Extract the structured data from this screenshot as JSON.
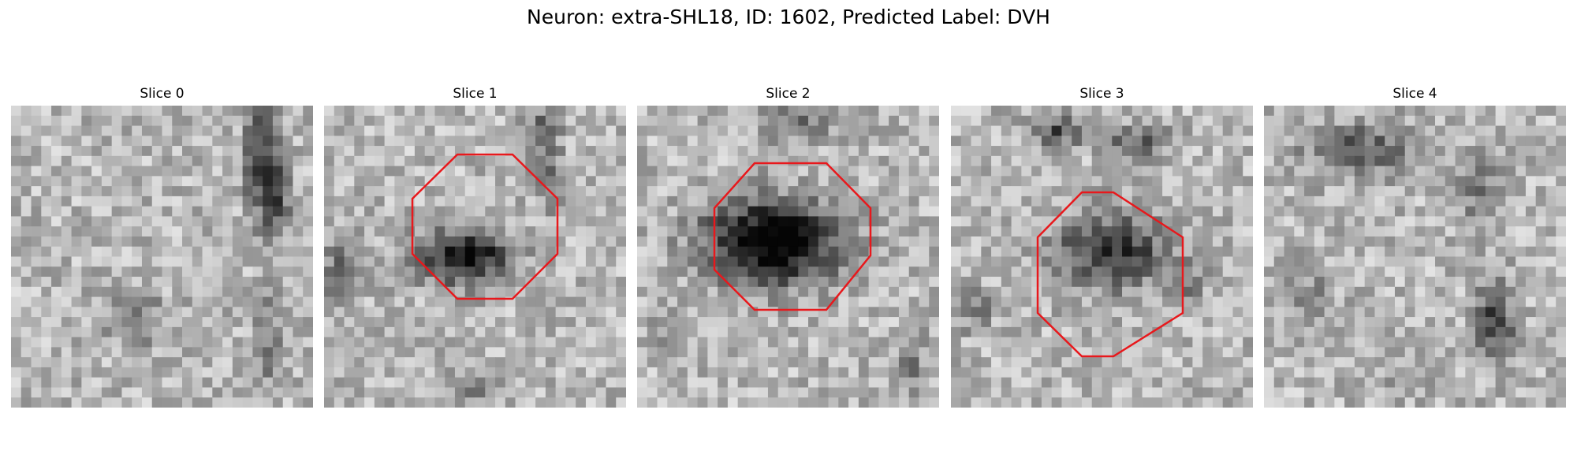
{
  "figure": {
    "title": "Neuron: extra-SHL18, ID: 1602, Predicted Label: DVH",
    "outline_color": "#e8181c"
  },
  "slices": [
    {
      "label": "Slice 0",
      "has_outline": false
    },
    {
      "label": "Slice 1",
      "has_outline": true
    },
    {
      "label": "Slice 2",
      "has_outline": true
    },
    {
      "label": "Slice 3",
      "has_outline": true
    },
    {
      "label": "Slice 4",
      "has_outline": false
    }
  ]
}
